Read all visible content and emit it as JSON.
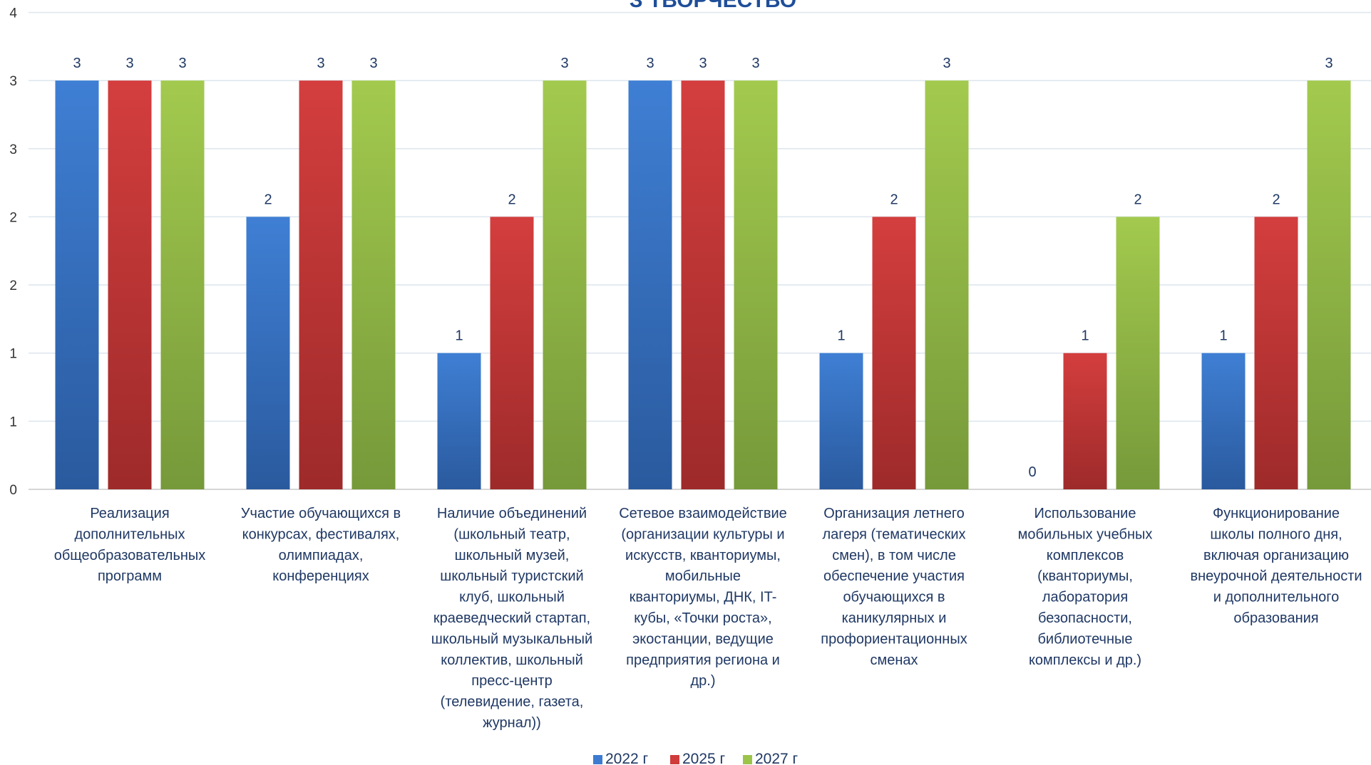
{
  "chart_data": {
    "type": "bar",
    "title": "З ТВОРЧЕСТВО",
    "y_tick_labels": [
      "0",
      "1",
      "1",
      "2",
      "2",
      "3",
      "3",
      "4"
    ],
    "ylim": [
      0,
      3.5
    ],
    "grid": true,
    "legend_position": "bottom",
    "categories": [
      [
        "Реализация",
        "дополнительных",
        "общеобразовательных",
        "программ"
      ],
      [
        "Участие обучающихся в",
        "конкурсах, фестивалях,",
        "олимпиадах,",
        "конференциях"
      ],
      [
        "Наличие объединений",
        "(школьный театр,",
        "школьный музей,",
        "школьный туристский",
        "клуб, школьный",
        "краеведческий стартап,",
        "школьный музыкальный",
        "коллектив, школьный",
        "пресс-центр",
        "(телевидение, газета,",
        "журнал))"
      ],
      [
        "Сетевое взаимодействие",
        "(организации культуры и",
        "искусств, кванториумы,",
        "мобильные",
        "кванториумы, ДНК, IT-",
        "кубы, «Точки роста»,",
        "экостанции, ведущие",
        "предприятия региона и",
        "др.)"
      ],
      [
        "Организация летнего",
        "лагеря (тематических",
        "смен), в том числе",
        "обеспечение участия",
        "обучающихся в",
        "каникулярных и",
        "профориентационных",
        "сменах"
      ],
      [
        "Использование",
        "мобильных учебных",
        "комплексов",
        "(кванториумы,",
        "лаборатория",
        "безопасности,",
        "библиотечные",
        "комплексы и др.)"
      ],
      [
        "Функционирование",
        "школы полного дня,",
        "включая организацию",
        "внеурочной деятельности",
        "и дополнительного",
        "образования"
      ]
    ],
    "series": [
      {
        "name": "2022  г",
        "color": "#3d7bd0",
        "values": [
          3,
          2,
          1,
          3,
          1,
          0,
          1
        ]
      },
      {
        "name": "2025 г",
        "color": "#d03b3b",
        "values": [
          3,
          3,
          2,
          3,
          2,
          1,
          2
        ]
      },
      {
        "name": "2027 г",
        "color": "#9cc44a",
        "values": [
          3,
          3,
          3,
          3,
          3,
          2,
          3
        ]
      }
    ]
  }
}
